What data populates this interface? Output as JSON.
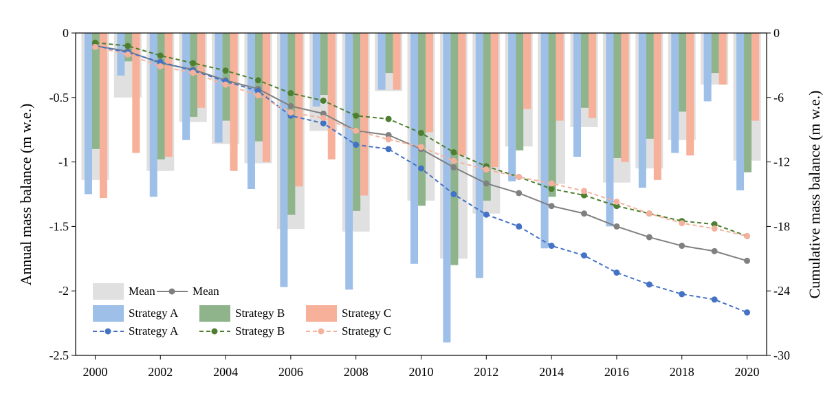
{
  "chart_data": {
    "type": "bar-line",
    "x": [
      2000,
      2001,
      2002,
      2003,
      2004,
      2005,
      2006,
      2007,
      2008,
      2009,
      2010,
      2011,
      2012,
      2013,
      2014,
      2015,
      2016,
      2017,
      2018,
      2019,
      2020
    ],
    "xlim": [
      1999.4,
      2020.6
    ],
    "xticks": [
      2000,
      2002,
      2004,
      2006,
      2008,
      2010,
      2012,
      2014,
      2016,
      2018,
      2020
    ],
    "y_label": "Annual mass balance (m w.e.)",
    "y2_label": "Cumulative mass balance (m w.e.)",
    "ylim": [
      -2.5,
      0
    ],
    "yticks": [
      0,
      -0.5,
      -1,
      -1.5,
      -2,
      -2.5
    ],
    "y2lim": [
      -30,
      0
    ],
    "y2ticks": [
      0,
      -6,
      -12,
      -18,
      -24,
      -30
    ],
    "series": [
      {
        "name": "Mean",
        "type": "bar",
        "color": "#e0e0e0",
        "values": [
          -1.14,
          -0.5,
          -1.07,
          -0.69,
          -0.86,
          -1.01,
          -1.52,
          -0.76,
          -1.54,
          -0.45,
          -1.3,
          -1.75,
          -1.4,
          -0.88,
          -1.17,
          -0.73,
          -1.16,
          -1.05,
          -0.83,
          -0.4,
          -0.99
        ]
      },
      {
        "name": "Strategy A",
        "type": "bar",
        "color": "#9dbfe8",
        "values": [
          -1.25,
          -0.33,
          -1.27,
          -0.83,
          -0.85,
          -1.21,
          -1.97,
          -0.57,
          -1.99,
          -0.44,
          -1.79,
          -2.4,
          -1.9,
          -1.15,
          -1.67,
          -0.96,
          -1.5,
          -1.2,
          -0.93,
          -0.53,
          -1.22
        ]
      },
      {
        "name": "Strategy B",
        "type": "bar",
        "color": "#8fb48c",
        "values": [
          -0.9,
          -0.22,
          -0.98,
          -0.65,
          -0.68,
          -0.84,
          -1.41,
          -0.48,
          -1.38,
          -0.31,
          -1.34,
          -1.8,
          -1.3,
          -0.91,
          -1.27,
          -0.58,
          -0.97,
          -0.82,
          -0.61,
          -0.31,
          -1.08
        ]
      },
      {
        "name": "Strategy C",
        "type": "bar",
        "color": "#f7b09a",
        "values": [
          -1.28,
          -0.93,
          -0.96,
          -0.58,
          -1.07,
          -1.0,
          -1.19,
          -0.98,
          -1.26,
          -0.44,
          -0.77,
          -0.95,
          -1.04,
          -0.59,
          -0.68,
          -0.66,
          -1.0,
          -1.14,
          -0.95,
          -0.4,
          -0.68
        ]
      },
      {
        "name": "Mean",
        "type": "line",
        "axis": "y2",
        "color": "#808080",
        "values": [
          -1.2,
          -1.7,
          -2.8,
          -3.4,
          -4.4,
          -5.2,
          -6.8,
          -7.5,
          -9.1,
          -9.5,
          -10.8,
          -12.5,
          -14.0,
          -14.9,
          -16.1,
          -16.8,
          -18.0,
          -19.0,
          -19.8,
          -20.3,
          -21.2
        ]
      },
      {
        "name": "Strategy A",
        "type": "line",
        "axis": "y2",
        "dashed": true,
        "color": "#4472c4",
        "values": [
          -1.2,
          -1.8,
          -2.7,
          -3.5,
          -4.5,
          -5.4,
          -7.7,
          -8.4,
          -10.4,
          -10.8,
          -12.6,
          -15.0,
          -16.9,
          -18.0,
          -19.8,
          -20.7,
          -22.3,
          -23.4,
          -24.3,
          -24.8,
          -26.0
        ]
      },
      {
        "name": "Strategy B",
        "type": "line",
        "axis": "y2",
        "dashed": true,
        "color": "#4e7f2e",
        "values": [
          -0.9,
          -1.2,
          -2.1,
          -2.8,
          -3.5,
          -4.4,
          -5.6,
          -6.3,
          -7.7,
          -8.0,
          -9.3,
          -11.1,
          -12.4,
          -13.4,
          -14.5,
          -15.1,
          -16.1,
          -16.8,
          -17.5,
          -17.8,
          -18.9
        ]
      },
      {
        "name": "Strategy C",
        "type": "line",
        "axis": "y2",
        "dashed": true,
        "color": "#f4b29e",
        "values": [
          -1.3,
          -2.0,
          -3.1,
          -3.7,
          -4.8,
          -5.8,
          -7.4,
          -7.9,
          -9.1,
          -9.9,
          -10.6,
          -11.9,
          -12.7,
          -13.4,
          -14.0,
          -14.7,
          -15.7,
          -16.8,
          -17.7,
          -18.2,
          -18.9
        ]
      }
    ]
  }
}
